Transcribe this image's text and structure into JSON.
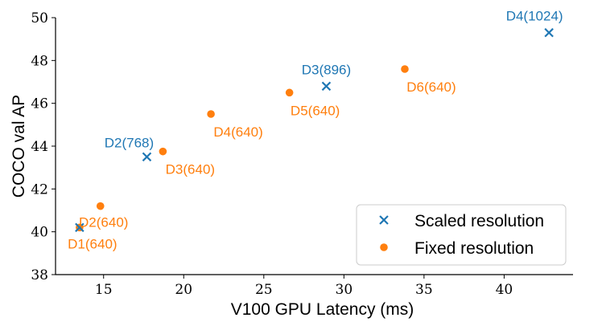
{
  "chart_data": {
    "type": "scatter",
    "title": "",
    "xlabel": "V100 GPU Latency (ms)",
    "ylabel": "COCO val AP",
    "xlim": [
      12,
      44.3
    ],
    "ylim": [
      38,
      50
    ],
    "xticks": [
      15,
      20,
      25,
      30,
      35,
      40
    ],
    "yticks": [
      38,
      40,
      42,
      44,
      46,
      48,
      50
    ],
    "grid": false,
    "legend_position": "bottom-right",
    "series": [
      {
        "name": "Scaled resolution",
        "marker": "x",
        "color": "#1f77b4",
        "points": [
          {
            "x": 13.5,
            "y": 40.2,
            "label": ""
          },
          {
            "x": 17.7,
            "y": 43.5,
            "label": "D2(768)"
          },
          {
            "x": 28.9,
            "y": 46.8,
            "label": "D3(896)"
          },
          {
            "x": 42.8,
            "y": 49.3,
            "label": "D4(1024)"
          }
        ]
      },
      {
        "name": "Fixed resolution",
        "marker": "o",
        "color": "#ff7f0e",
        "points": [
          {
            "x": 13.5,
            "y": 40.2,
            "label": "D1(640)"
          },
          {
            "x": 14.8,
            "y": 41.2,
            "label": "D2(640)"
          },
          {
            "x": 18.7,
            "y": 43.75,
            "label": "D3(640)"
          },
          {
            "x": 21.7,
            "y": 45.5,
            "label": "D4(640)"
          },
          {
            "x": 26.6,
            "y": 46.5,
            "label": "D5(640)"
          },
          {
            "x": 33.8,
            "y": 47.6,
            "label": "D6(640)"
          }
        ]
      }
    ]
  }
}
